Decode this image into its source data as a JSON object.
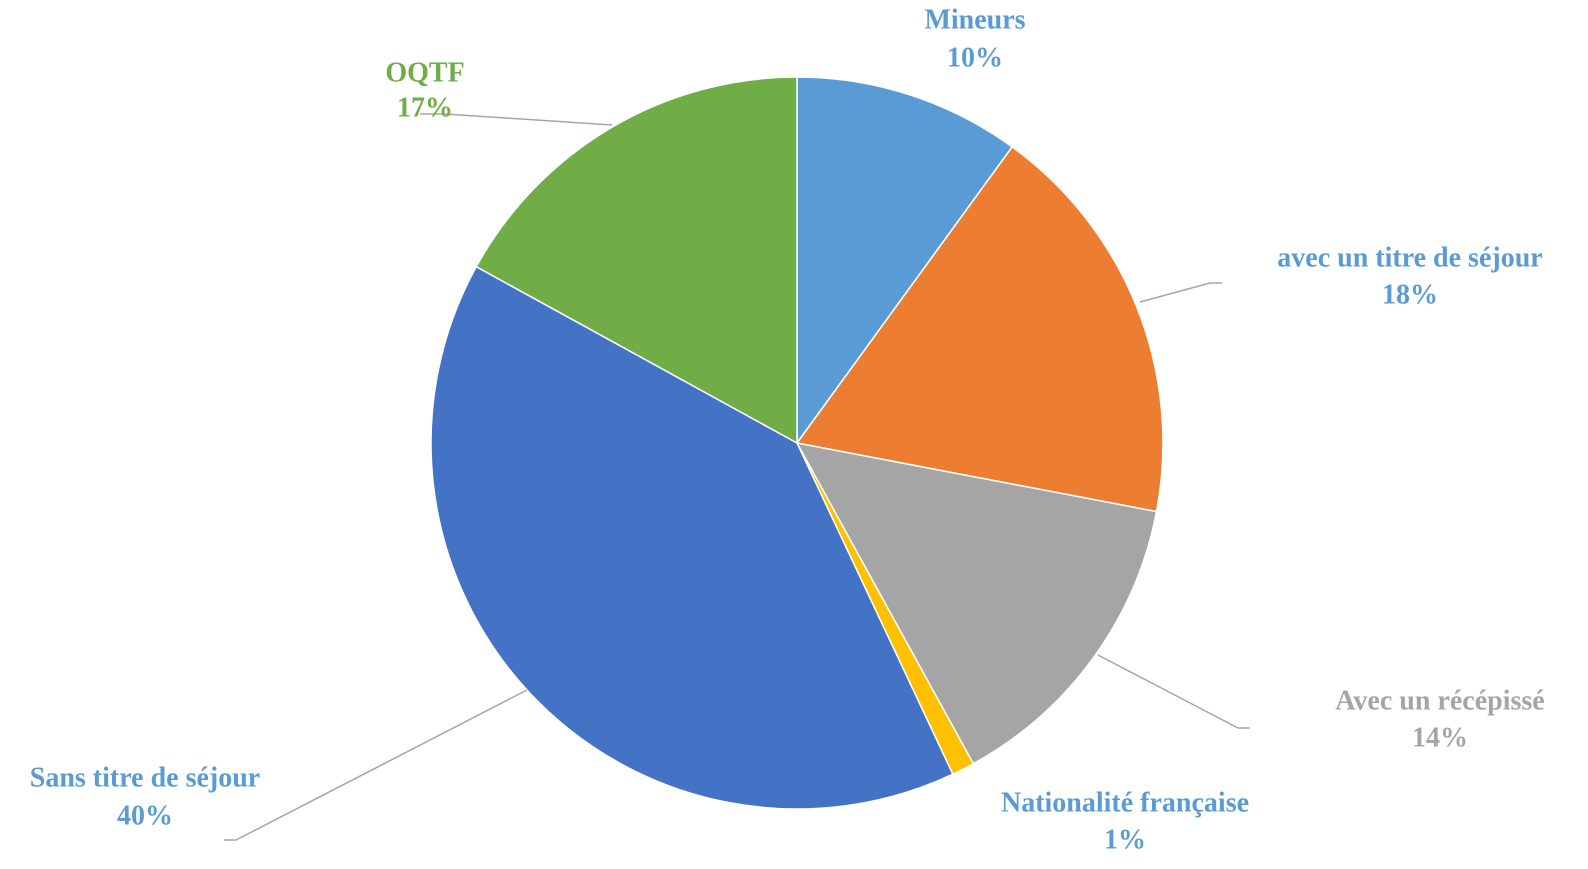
{
  "chart_data": {
    "type": "pie",
    "categories": [
      "Mineurs",
      "avec un titre de séjour",
      "Avec un récépissé",
      "Nationalité française",
      "Sans titre de séjour",
      "OQTF"
    ],
    "values": [
      10,
      18,
      14,
      1,
      40,
      17
    ],
    "value_labels": [
      "10%",
      "18%",
      "14%",
      "1%",
      "40%",
      "17%"
    ],
    "colors": [
      "#5b9bd5",
      "#ed7d31",
      "#a5a5a5",
      "#ffc000",
      "#4472c4",
      "#70ad47"
    ],
    "label_colors": [
      "#5b9bd5",
      "#5b9bd5",
      "#a5a5a5",
      "#5b9bd5",
      "#5b9bd5",
      "#70ad47"
    ]
  }
}
